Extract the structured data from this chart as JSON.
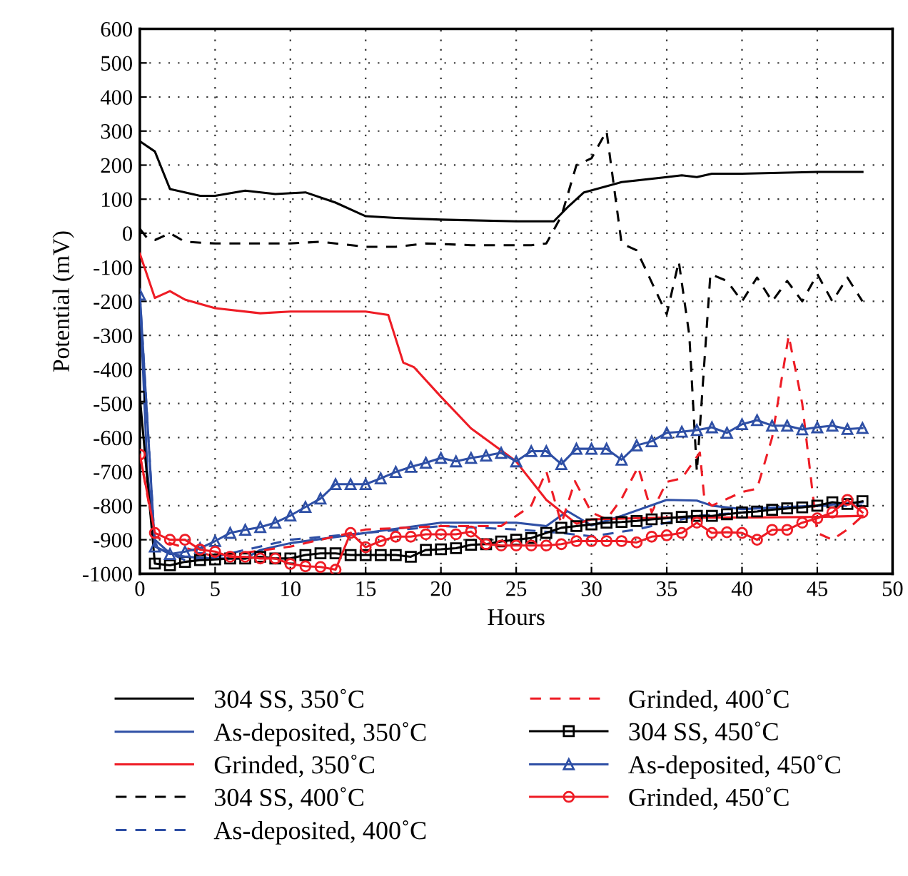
{
  "chart_data": {
    "type": "line",
    "xlabel": "Hours",
    "ylabel": "Potential (mV)",
    "xlim": [
      0,
      50
    ],
    "ylim": [
      -1000,
      600
    ],
    "xticks": [
      0,
      5,
      10,
      15,
      20,
      25,
      30,
      35,
      40,
      45,
      50
    ],
    "yticks": [
      -1000,
      -900,
      -800,
      -700,
      -600,
      -500,
      -400,
      -300,
      -200,
      -100,
      0,
      100,
      200,
      300,
      400,
      500,
      600
    ],
    "grid": true,
    "legend": "bottom",
    "series": [
      {
        "name": "304 SS, 350˚C",
        "color": "#000000",
        "line_style": "solid",
        "marker": "none",
        "x": [
          0,
          1,
          2,
          3,
          4,
          5,
          7,
          9,
          11,
          13,
          15,
          17,
          20,
          25,
          27.5,
          28.5,
          29.5,
          32,
          35,
          36,
          37,
          38,
          40,
          45,
          48
        ],
        "values": [
          270,
          240,
          130,
          120,
          110,
          110,
          125,
          115,
          120,
          90,
          50,
          45,
          40,
          35,
          35,
          80,
          120,
          150,
          165,
          170,
          165,
          175,
          175,
          180,
          180
        ]
      },
      {
        "name": "As-deposited, 350˚C",
        "color": "#2e4fa5",
        "line_style": "solid",
        "marker": "none",
        "x": [
          0,
          0.5,
          1,
          2,
          3,
          5,
          7,
          8,
          10,
          15,
          20,
          25,
          27,
          28.4,
          30,
          32,
          35,
          37,
          38,
          40,
          45,
          48
        ],
        "values": [
          -180,
          -700,
          -900,
          -940,
          -950,
          -955,
          -955,
          -930,
          -910,
          -880,
          -850,
          -850,
          -860,
          -816,
          -858,
          -830,
          -783,
          -785,
          -800,
          -810,
          -800,
          -790
        ]
      },
      {
        "name": "Grinded, 350˚C",
        "color": "#ee1c25",
        "line_style": "solid",
        "marker": "none",
        "x": [
          0,
          1,
          2,
          3,
          5,
          8,
          10,
          15,
          16.5,
          17.5,
          18.2,
          20,
          22,
          25,
          25.5,
          27,
          29,
          30,
          35,
          40,
          45,
          48
        ],
        "values": [
          -60,
          -190,
          -170,
          -195,
          -220,
          -235,
          -230,
          -230,
          -240,
          -380,
          -393,
          -480,
          -573,
          -670,
          -699,
          -783,
          -853,
          -840,
          -835,
          -835,
          -833,
          -830
        ]
      },
      {
        "name": "304 SS, 400˚C",
        "color": "#000000",
        "line_style": "dashed",
        "marker": "none",
        "x": [
          0,
          0.5,
          1,
          2,
          3,
          5,
          10,
          12,
          15,
          17,
          19,
          22,
          26,
          27,
          28,
          29,
          30,
          31,
          32,
          33,
          35,
          35.8,
          36.5,
          37,
          37.9,
          39,
          40,
          41,
          42,
          43,
          44,
          45,
          46,
          47,
          48
        ],
        "values": [
          13,
          -15,
          -20,
          0,
          -25,
          -30,
          -30,
          -25,
          -40,
          -40,
          -30,
          -35,
          -35,
          -30,
          50,
          200,
          220,
          300,
          -30,
          -50,
          -238,
          -83,
          -300,
          -700,
          -120,
          -140,
          -200,
          -130,
          -200,
          -140,
          -200,
          -120,
          -200,
          -130,
          -200
        ]
      },
      {
        "name": "As-deposited, 400˚C",
        "color": "#2e4fa5",
        "line_style": "dashed",
        "marker": "none",
        "x": [
          0,
          1,
          3,
          5,
          10,
          15,
          20,
          25,
          28,
          30,
          33,
          35,
          37,
          40,
          45,
          48
        ],
        "values": [
          -180,
          -920,
          -960,
          -950,
          -900,
          -880,
          -860,
          -870,
          -880,
          -890,
          -870,
          -850,
          -830,
          -820,
          -800,
          -800
        ]
      },
      {
        "name": "Grinded, 400˚C",
        "color": "#ee1c25",
        "line_style": "dashed",
        "marker": "none",
        "x": [
          0,
          1,
          2,
          5,
          10,
          15,
          20,
          24,
          26,
          27,
          28,
          28.9,
          30,
          31,
          32,
          33.1,
          34,
          35,
          36,
          37.2,
          37.5,
          38,
          40,
          41,
          42,
          43.1,
          44,
          45,
          46,
          47,
          48
        ],
        "values": [
          -650,
          -890,
          -910,
          -950,
          -920,
          -870,
          -860,
          -860,
          -800,
          -699,
          -853,
          -728,
          -820,
          -840,
          -780,
          -686,
          -820,
          -730,
          -720,
          -644,
          -780,
          -800,
          -760,
          -750,
          -600,
          -301,
          -500,
          -880,
          -900,
          -870,
          -830
        ]
      },
      {
        "name": "304 SS, 450˚C",
        "color": "#000000",
        "line_style": "solid",
        "marker": "square",
        "x": [
          0,
          1,
          2,
          3,
          4,
          5,
          6,
          7,
          8,
          9,
          10,
          11,
          12,
          13,
          14,
          15,
          16,
          17,
          18,
          19,
          20,
          21,
          22,
          23,
          24,
          25,
          26,
          27,
          28,
          29,
          30,
          31,
          32,
          33,
          34,
          35,
          36,
          37,
          38,
          39,
          40,
          41,
          42,
          43,
          44,
          45,
          46,
          47,
          48
        ],
        "values": [
          -480,
          -970,
          -975,
          -965,
          -960,
          -958,
          -955,
          -955,
          -950,
          -955,
          -955,
          -945,
          -940,
          -940,
          -945,
          -945,
          -945,
          -945,
          -950,
          -930,
          -928,
          -925,
          -915,
          -913,
          -905,
          -900,
          -895,
          -880,
          -865,
          -860,
          -855,
          -850,
          -848,
          -845,
          -840,
          -837,
          -833,
          -830,
          -830,
          -825,
          -820,
          -817,
          -812,
          -808,
          -805,
          -800,
          -790,
          -795,
          -787
        ]
      },
      {
        "name": "As-deposited, 450˚C",
        "color": "#2e4fa5",
        "line_style": "solid",
        "marker": "triangle",
        "x": [
          0,
          1,
          2,
          3,
          4,
          5,
          6,
          7,
          8,
          9,
          10,
          11,
          12,
          13,
          14,
          15,
          16,
          17,
          18,
          19,
          20,
          21,
          22,
          23,
          24,
          25,
          26,
          27,
          28,
          29,
          30,
          31,
          32,
          33,
          34,
          35,
          36,
          37,
          38,
          39,
          40,
          41,
          42,
          43,
          44,
          45,
          46,
          47,
          48
        ],
        "values": [
          -180,
          -920,
          -942,
          -935,
          -925,
          -904,
          -880,
          -871,
          -863,
          -850,
          -829,
          -804,
          -779,
          -737,
          -737,
          -737,
          -720,
          -701,
          -686,
          -674,
          -660,
          -670,
          -660,
          -653,
          -645,
          -670,
          -640,
          -640,
          -678,
          -633,
          -633,
          -633,
          -665,
          -623,
          -611,
          -586,
          -583,
          -578,
          -570,
          -586,
          -561,
          -549,
          -565,
          -565,
          -576,
          -570,
          -565,
          -575,
          -572
        ]
      },
      {
        "name": "Grinded, 450˚C",
        "color": "#ee1c25",
        "line_style": "solid",
        "marker": "circle",
        "x": [
          0,
          1,
          2,
          3,
          4,
          5,
          6,
          7,
          8,
          9,
          10,
          11,
          12,
          13,
          14,
          15,
          16,
          17,
          18,
          19,
          20,
          21,
          22,
          23,
          24,
          25,
          26,
          27,
          28,
          29,
          30,
          31,
          32,
          33,
          34,
          35,
          36,
          37,
          38,
          39,
          40,
          41,
          42,
          43,
          44,
          45,
          46,
          47,
          48
        ],
        "values": [
          -650,
          -880,
          -900,
          -900,
          -929,
          -935,
          -950,
          -950,
          -955,
          -955,
          -971,
          -978,
          -980,
          -988,
          -880,
          -922,
          -904,
          -891,
          -891,
          -884,
          -884,
          -884,
          -876,
          -913,
          -917,
          -917,
          -917,
          -917,
          -913,
          -904,
          -904,
          -904,
          -904,
          -908,
          -891,
          -887,
          -880,
          -850,
          -880,
          -878,
          -880,
          -900,
          -871,
          -871,
          -850,
          -837,
          -820,
          -783,
          -820
        ]
      }
    ]
  }
}
